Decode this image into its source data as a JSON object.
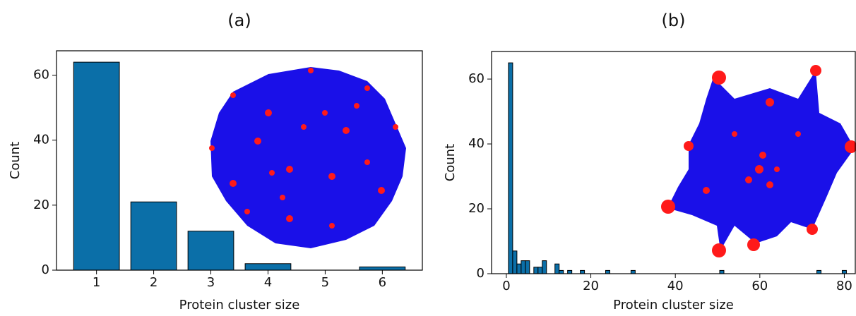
{
  "chart_data": [
    {
      "type": "bar",
      "title": "(a)",
      "x_label": "Protein cluster size",
      "y_label": "Count",
      "x": [
        1,
        2,
        3,
        4,
        5,
        6
      ],
      "values": [
        64,
        21,
        12,
        2,
        0,
        1
      ],
      "color": "#0b6fa8",
      "xlim": [
        0.3,
        6.7
      ],
      "xticks": [
        1,
        2,
        3,
        4,
        5,
        6
      ],
      "ylim": [
        0,
        67.5
      ],
      "yticks": [
        0,
        20,
        40,
        60
      ]
    },
    {
      "type": "bar",
      "title": "(b)",
      "x_label": "Protein cluster size",
      "y_label": "Count",
      "x": [
        1,
        2,
        3,
        4,
        5,
        7,
        8,
        9,
        12,
        13,
        15,
        18,
        24,
        30,
        51,
        74,
        80
      ],
      "values": [
        65,
        7,
        3,
        4,
        4,
        2,
        2,
        4,
        3,
        1,
        1,
        1,
        1,
        1,
        1,
        1,
        1
      ],
      "color": "#0b6fa8",
      "xlim": [
        -3.5,
        82.6
      ],
      "xticks": [
        0,
        20,
        40,
        60,
        80
      ],
      "ylim": [
        0,
        68.5
      ],
      "yticks": [
        0,
        20,
        40,
        60
      ]
    }
  ]
}
